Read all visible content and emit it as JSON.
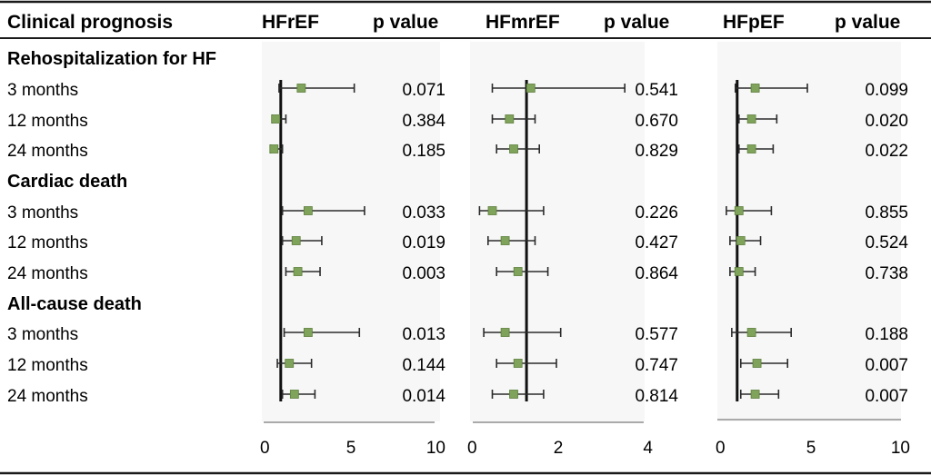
{
  "header": {
    "label": "Clinical prognosis",
    "p_label": "p value"
  },
  "chart_data": {
    "type": "forest",
    "marker_color": "#7fa35a",
    "axis_color": "#aaaaaa",
    "panels": [
      {
        "name": "HFrEF",
        "xlim": [
          0,
          10
        ],
        "ticks": [
          0,
          5,
          10
        ],
        "reference": 1,
        "rows": [
          {
            "est": 2.2,
            "lo": 0.9,
            "hi": 5.3,
            "p": "0.071"
          },
          {
            "est": 0.7,
            "lo": 0.5,
            "hi": 1.3,
            "p": "0.384"
          },
          {
            "est": 0.6,
            "lo": 0.4,
            "hi": 1.1,
            "p": "0.185"
          },
          {
            "est": 2.6,
            "lo": 1.1,
            "hi": 5.9,
            "p": "0.033"
          },
          {
            "est": 1.9,
            "lo": 1.1,
            "hi": 3.4,
            "p": "0.019"
          },
          {
            "est": 2.0,
            "lo": 1.3,
            "hi": 3.3,
            "p": "0.003"
          },
          {
            "est": 2.6,
            "lo": 1.2,
            "hi": 5.6,
            "p": "0.013"
          },
          {
            "est": 1.5,
            "lo": 0.8,
            "hi": 2.8,
            "p": "0.144"
          },
          {
            "est": 1.8,
            "lo": 1.1,
            "hi": 3.0,
            "p": "0.014"
          }
        ]
      },
      {
        "name": "HFmrEF",
        "xlim": [
          0,
          4
        ],
        "ticks": [
          0,
          2,
          4
        ],
        "reference": 1.3,
        "rows": [
          {
            "est": 1.4,
            "lo": 0.5,
            "hi": 3.6,
            "p": "0.541"
          },
          {
            "est": 0.9,
            "lo": 0.5,
            "hi": 1.5,
            "p": "0.670"
          },
          {
            "est": 1.0,
            "lo": 0.6,
            "hi": 1.6,
            "p": "0.829"
          },
          {
            "est": 0.5,
            "lo": 0.2,
            "hi": 1.7,
            "p": "0.226"
          },
          {
            "est": 0.8,
            "lo": 0.4,
            "hi": 1.5,
            "p": "0.427"
          },
          {
            "est": 1.1,
            "lo": 0.6,
            "hi": 1.8,
            "p": "0.864"
          },
          {
            "est": 0.8,
            "lo": 0.3,
            "hi": 2.1,
            "p": "0.577"
          },
          {
            "est": 1.1,
            "lo": 0.6,
            "hi": 2.0,
            "p": "0.747"
          },
          {
            "est": 1.0,
            "lo": 0.5,
            "hi": 1.7,
            "p": "0.814"
          }
        ]
      },
      {
        "name": "HFpEF",
        "xlim": [
          0,
          10
        ],
        "ticks": [
          0,
          5,
          10
        ],
        "reference": 1,
        "rows": [
          {
            "est": 2.0,
            "lo": 0.9,
            "hi": 4.9,
            "p": "0.099"
          },
          {
            "est": 1.8,
            "lo": 1.1,
            "hi": 3.2,
            "p": "0.020"
          },
          {
            "est": 1.8,
            "lo": 1.1,
            "hi": 3.0,
            "p": "0.022"
          },
          {
            "est": 1.1,
            "lo": 0.4,
            "hi": 2.9,
            "p": "0.855"
          },
          {
            "est": 1.2,
            "lo": 0.6,
            "hi": 2.3,
            "p": "0.524"
          },
          {
            "est": 1.1,
            "lo": 0.6,
            "hi": 2.0,
            "p": "0.738"
          },
          {
            "est": 1.8,
            "lo": 0.7,
            "hi": 4.0,
            "p": "0.188"
          },
          {
            "est": 2.1,
            "lo": 1.2,
            "hi": 3.8,
            "p": "0.007"
          },
          {
            "est": 2.0,
            "lo": 1.2,
            "hi": 3.3,
            "p": "0.007"
          }
        ]
      }
    ],
    "groups": [
      {
        "title": "Rehospitalization for HF",
        "rows": [
          "3 months",
          "12 months",
          "24 months"
        ]
      },
      {
        "title": "Cardiac death",
        "rows": [
          "3 months",
          "12 months",
          "24 months"
        ]
      },
      {
        "title": "All-cause death",
        "rows": [
          "3 months",
          "12 months",
          "24 months"
        ]
      }
    ]
  }
}
